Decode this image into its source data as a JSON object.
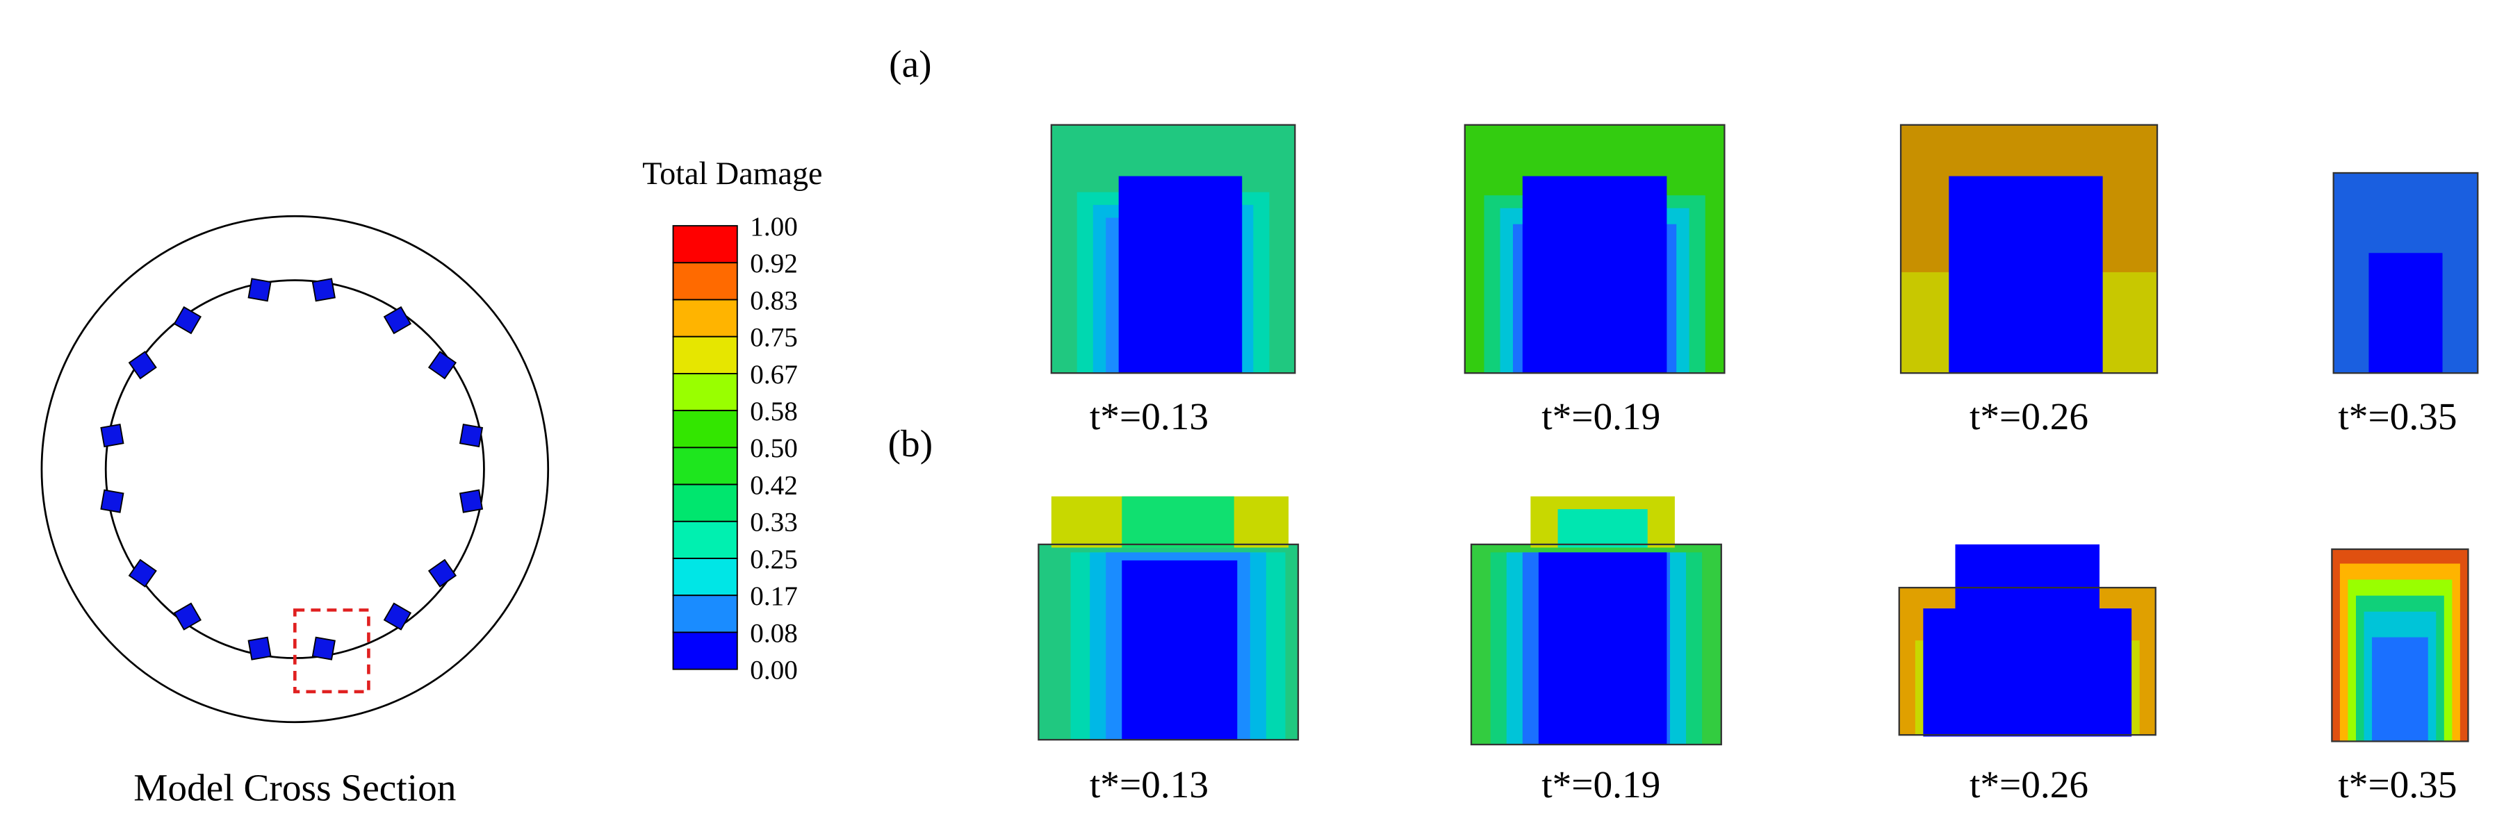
{
  "figure": {
    "cross_section": {
      "caption": "Model Cross Section"
    },
    "legend": {
      "title": "Total Damage",
      "labels": [
        "1.00",
        "0.92",
        "0.83",
        "0.75",
        "0.67",
        "0.58",
        "0.50",
        "0.42",
        "0.33",
        "0.25",
        "0.17",
        "0.08",
        "0.00"
      ],
      "colors": [
        "#ff0000",
        "#ff6a00",
        "#ffb400",
        "#e6e600",
        "#99ff00",
        "#33e600",
        "#1ee61e",
        "#00e66e",
        "#00f0b0",
        "#00e6e6",
        "#1a8cff",
        "#0000ff"
      ]
    },
    "rows": [
      {
        "label": "(a)",
        "panels": [
          "t*=0.13",
          "t*=0.19",
          "t*=0.26",
          "t*=0.35"
        ]
      },
      {
        "label": "(b)",
        "panels": [
          "t*=0.13",
          "t*=0.19",
          "t*=0.26",
          "t*=0.35"
        ]
      }
    ]
  }
}
